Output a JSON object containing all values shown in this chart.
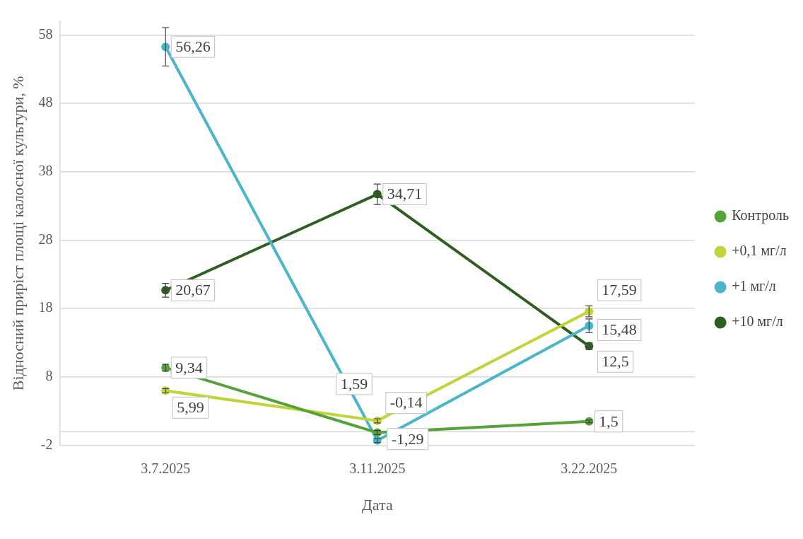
{
  "chart_data": {
    "type": "line",
    "xlabel": "Дата",
    "ylabel": "Відносний приріст площі калосної культури, %",
    "categories": [
      "3.7.2025",
      "3.11.2025",
      "3.22.2025"
    ],
    "series": [
      {
        "name": "Контроль",
        "color": "#56a23a",
        "values": [
          9.34,
          -0.14,
          1.5
        ],
        "errors": [
          0.5,
          0.3,
          0.2
        ],
        "value_labels": [
          "9,34",
          "-0,14",
          "1,5"
        ]
      },
      {
        "name": "+0,1 мг/л",
        "color": "#c3d33c",
        "values": [
          5.99,
          1.59,
          17.59
        ],
        "errors": [
          0.3,
          0.3,
          0.8
        ],
        "value_labels": [
          "5,99",
          "1,59",
          "17,59"
        ]
      },
      {
        "name": "+1 мг/л",
        "color": "#4bb5c9",
        "values": [
          56.26,
          -1.29,
          15.48
        ],
        "errors": [
          2.8,
          0.3,
          1
        ],
        "value_labels": [
          "56,26",
          "-1,29",
          "15,48"
        ]
      },
      {
        "name": "+10 мг/л",
        "color": "#2e5e22",
        "values": [
          20.67,
          34.71,
          12.5
        ],
        "errors": [
          1,
          1.5,
          0.5
        ],
        "value_labels": [
          "20,67",
          "34,71",
          "12,5"
        ]
      }
    ],
    "ylim": [
      -2,
      60
    ],
    "yticks": [
      -2,
      8,
      18,
      28,
      38,
      48,
      58
    ],
    "grid": "y",
    "legend": "right",
    "marker": "circle",
    "line_style": "solid",
    "ref_lines": [
      {
        "axis": "y",
        "value": 0,
        "color": "#d9d9d9"
      }
    ]
  }
}
